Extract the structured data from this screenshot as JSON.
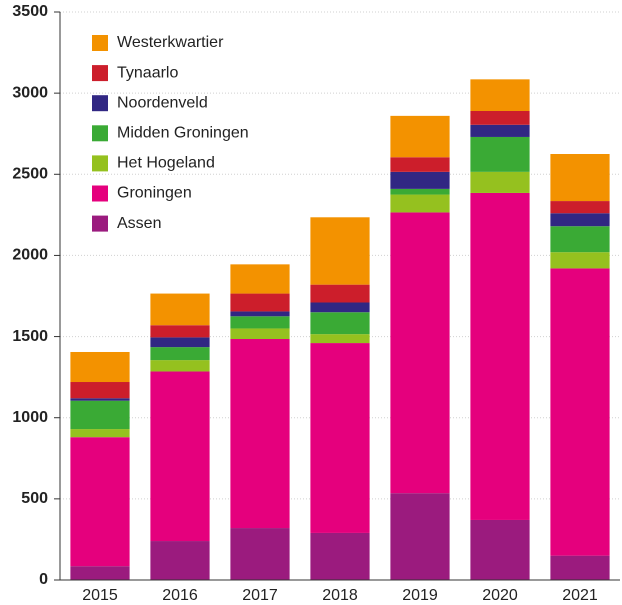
{
  "chart_data": {
    "type": "stacked_bar",
    "categories": [
      "2015",
      "2016",
      "2017",
      "2018",
      "2019",
      "2020",
      "2021"
    ],
    "series": [
      {
        "name": "Assen",
        "color": "#9b1b7e",
        "values": [
          85,
          240,
          320,
          290,
          535,
          370,
          150
        ]
      },
      {
        "name": "Groningen",
        "color": "#e5007d",
        "values": [
          795,
          1045,
          1165,
          1170,
          1730,
          2015,
          1770
        ]
      },
      {
        "name": "Het Hogeland",
        "color": "#95c11f",
        "values": [
          50,
          70,
          65,
          55,
          110,
          130,
          100
        ]
      },
      {
        "name": "Midden Groningen",
        "color": "#3aaa35",
        "values": [
          175,
          80,
          75,
          135,
          35,
          215,
          160
        ]
      },
      {
        "name": "Noordenveld",
        "color": "#312783",
        "values": [
          15,
          60,
          30,
          60,
          105,
          75,
          80
        ]
      },
      {
        "name": "Tynaarlo",
        "color": "#cc1e2b",
        "values": [
          100,
          75,
          110,
          110,
          90,
          85,
          75
        ]
      },
      {
        "name": "Westerkwartier",
        "color": "#f39200",
        "values": [
          185,
          195,
          180,
          415,
          255,
          195,
          290
        ]
      }
    ],
    "ylim": [
      0,
      3500
    ],
    "yticks": [
      0,
      500,
      1000,
      1500,
      2000,
      2500,
      3000,
      3500
    ],
    "grid": true,
    "legend": "top-left"
  }
}
